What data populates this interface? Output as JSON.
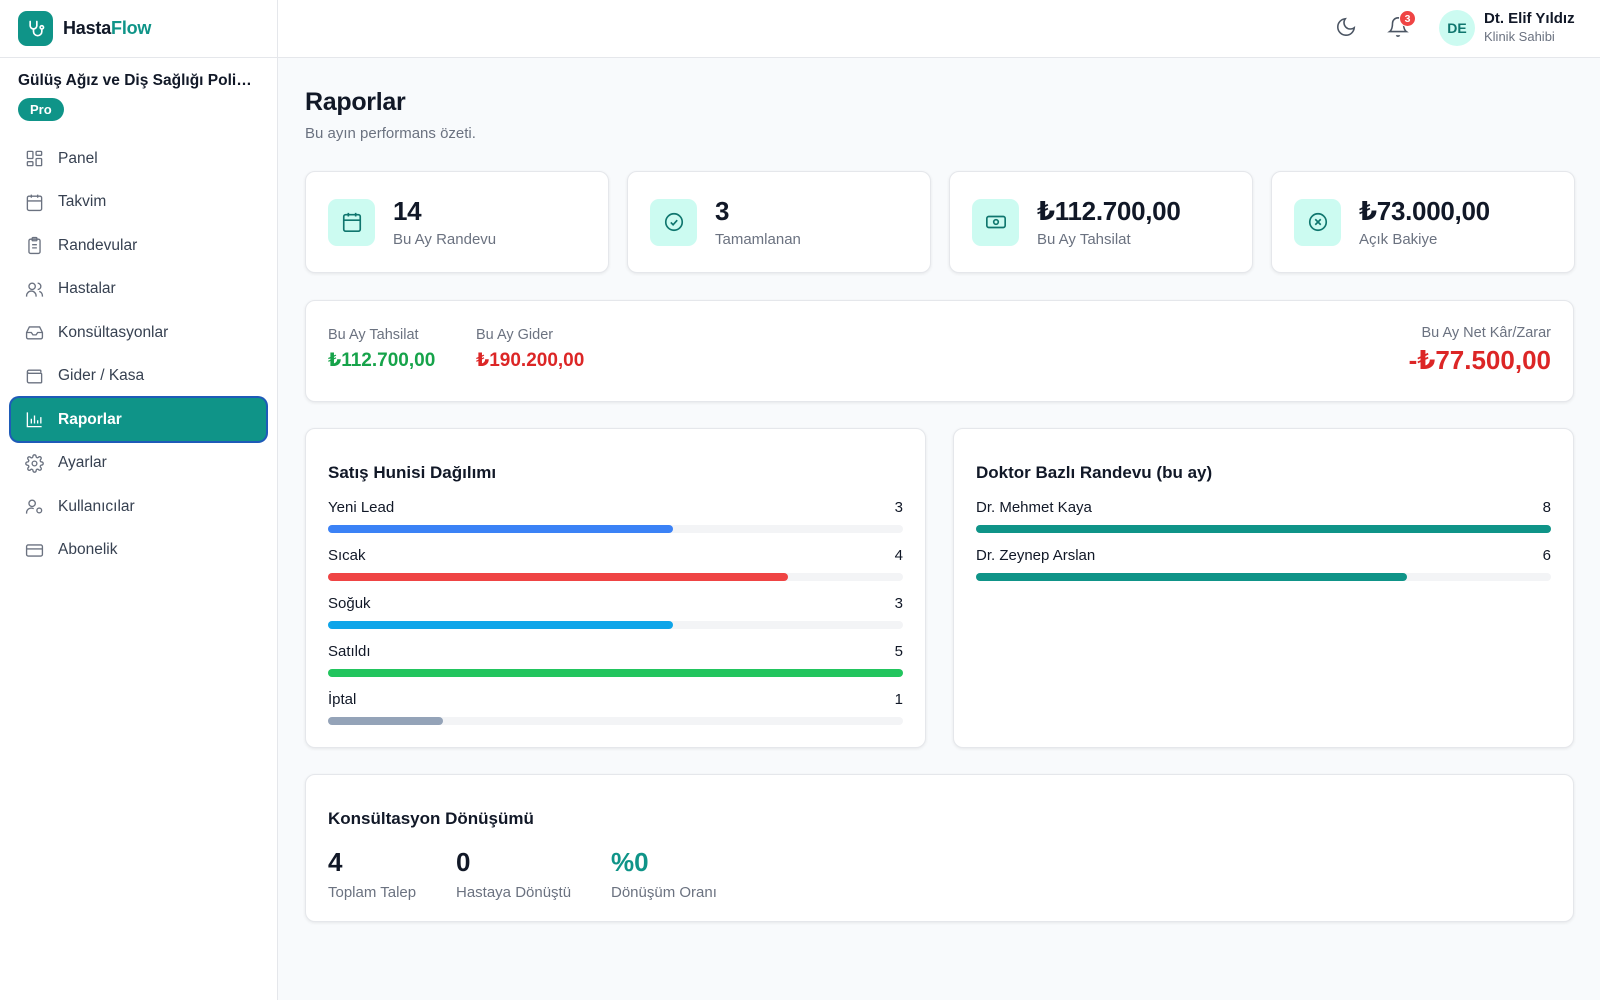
{
  "brand": {
    "name_part1": "Hasta",
    "name_part2": "Flow"
  },
  "clinic": {
    "name": "Gülüş Ağız ve Diş Sağlığı Poliklinik",
    "plan": "Pro"
  },
  "nav": [
    {
      "label": "Panel",
      "icon": "grid-icon"
    },
    {
      "label": "Takvim",
      "icon": "calendar-icon"
    },
    {
      "label": "Randevular",
      "icon": "clipboard-icon"
    },
    {
      "label": "Hastalar",
      "icon": "users-icon"
    },
    {
      "label": "Konsültasyonlar",
      "icon": "inbox-icon"
    },
    {
      "label": "Gider / Kasa",
      "icon": "wallet-icon"
    },
    {
      "label": "Raporlar",
      "icon": "bar-chart-icon",
      "active": true
    },
    {
      "label": "Ayarlar",
      "icon": "gear-icon"
    },
    {
      "label": "Kullanıcılar",
      "icon": "user-cog-icon"
    },
    {
      "label": "Abonelik",
      "icon": "credit-card-icon"
    }
  ],
  "topbar": {
    "notification_count": "3",
    "user": {
      "initials": "DE",
      "name": "Dt. Elif Yıldız",
      "role": "Klinik Sahibi"
    }
  },
  "page": {
    "title": "Raporlar",
    "subtitle": "Bu ayın performans özeti."
  },
  "stats": [
    {
      "value": "14",
      "label": "Bu Ay Randevu",
      "icon": "calendar-icon"
    },
    {
      "value": "3",
      "label": "Tamamlanan",
      "icon": "check-circle-icon"
    },
    {
      "value": "₺112.700,00",
      "label": "Bu Ay Tahsilat",
      "icon": "banknote-icon"
    },
    {
      "value": "₺73.000,00",
      "label": "Açık Bakiye",
      "icon": "x-circle-icon"
    }
  ],
  "finance": {
    "income_label": "Bu Ay Tahsilat",
    "income_value": "₺112.700,00",
    "expense_label": "Bu Ay Gider",
    "expense_value": "₺190.200,00",
    "net_label": "Bu Ay Net Kâr/Zarar",
    "net_value": "-₺77.500,00"
  },
  "funnel": {
    "title": "Satış Hunisi Dağılımı",
    "max": 5,
    "items": [
      {
        "label": "Yeni Lead",
        "value": 3,
        "color": "#3b82f6"
      },
      {
        "label": "Sıcak",
        "value": 4,
        "color": "#ef4444"
      },
      {
        "label": "Soğuk",
        "value": 3,
        "color": "#0ea5e9"
      },
      {
        "label": "Satıldı",
        "value": 5,
        "color": "#22c55e"
      },
      {
        "label": "İptal",
        "value": 1,
        "color": "#94a3b8"
      }
    ]
  },
  "doctors": {
    "title": "Doktor Bazlı Randevu (bu ay)",
    "max": 8,
    "items": [
      {
        "label": "Dr. Mehmet Kaya",
        "value": 8,
        "color": "#0f9488"
      },
      {
        "label": "Dr. Zeynep Arslan",
        "value": 6,
        "color": "#0f9488"
      }
    ]
  },
  "conversion": {
    "title": "Konsültasyon Dönüşümü",
    "items": [
      {
        "value": "4",
        "label": "Toplam Talep"
      },
      {
        "value": "0",
        "label": "Hastaya Dönüştü"
      },
      {
        "value": "%0",
        "label": "Dönüşüm Oranı"
      }
    ]
  },
  "colors": {
    "accent": "#0f9488",
    "accent_light": "#ccfbf1",
    "positive": "#16a34a",
    "negative": "#dc2626"
  }
}
